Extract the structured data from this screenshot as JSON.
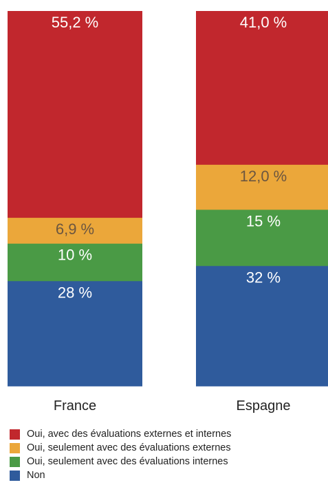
{
  "chart_data": {
    "type": "bar",
    "stacked": true,
    "categories": [
      "France",
      "Espagne"
    ],
    "series": [
      {
        "name": "Oui, avec des évaluations externes et internes",
        "color": "#c1272d",
        "label_color": "#ffffff",
        "values": [
          55.2,
          41.0
        ],
        "labels": [
          "55,2 %",
          "41,0 %"
        ]
      },
      {
        "name": "Oui, seulement avec des évaluations externes",
        "color": "#eba73a",
        "label_color": "#6b5640",
        "values": [
          6.9,
          12.0
        ],
        "labels": [
          "6,9 %",
          "12,0 %"
        ]
      },
      {
        "name": "Oui, seulement avec des évaluations internes",
        "color": "#4a9a45",
        "label_color": "#ffffff",
        "values": [
          10,
          15
        ],
        "labels": [
          "10 %",
          "15 %"
        ]
      },
      {
        "name": "Non",
        "color": "#2f5b9c",
        "label_color": "#ffffff",
        "values": [
          28,
          32
        ],
        "labels": [
          "28 %",
          "32 %"
        ]
      }
    ],
    "legend_position": "bottom-left",
    "grid": false
  }
}
